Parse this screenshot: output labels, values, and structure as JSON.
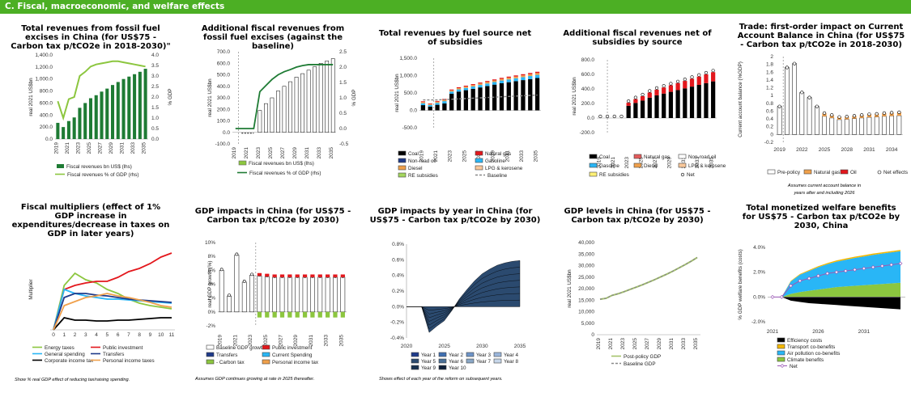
{
  "header": {
    "title": "C. Fiscal, macroeconomic, and welfare effects"
  },
  "colors": {
    "green_dark": "#1e7b34",
    "green_light": "#8cc63f",
    "orange": "#f0a04b",
    "sky": "#29b6f6",
    "red": "#e3171c",
    "black": "#000000",
    "grey_dash": "#888888",
    "navy": "#2b4a6f"
  },
  "chart_data": [
    {
      "id": "p1",
      "type": "bar",
      "title": "Total revenues from fossil fuel excises in China (for US$75 - Carbon tax p/tCO2e in 2018-2030)\"",
      "ylabel": "real 2021 US$bn",
      "y2label": "% GDP",
      "yticks": [
        "0.0",
        "200.0",
        "400.0",
        "600.0",
        "800.0",
        "1,000.0",
        "1,200.0",
        "1,400.0"
      ],
      "y2ticks": [
        "0.0",
        "0.5",
        "1.0",
        "1.5",
        "2.0",
        "2.5",
        "3.0",
        "3.5",
        "4.0"
      ],
      "xticks": [
        "2019",
        "2021",
        "2023",
        "2025",
        "2027",
        "2029",
        "2031",
        "2033",
        "2035"
      ],
      "x": [
        2019,
        2020,
        2021,
        2022,
        2023,
        2024,
        2025,
        2026,
        2027,
        2028,
        2029,
        2030,
        2031,
        2032,
        2033,
        2034,
        2035
      ],
      "ylim": [
        0,
        1400
      ],
      "y2lim": [
        0,
        4.0
      ],
      "series": [
        {
          "name": "Fiscal revenues bn US$ (lhs)",
          "values": [
            270,
            200,
            300,
            360,
            520,
            600,
            680,
            730,
            790,
            840,
            900,
            950,
            1000,
            1040,
            1080,
            1120,
            1170
          ]
        },
        {
          "name": "Fiscal revenues % of GDP (rhs)",
          "values": [
            1.8,
            1.0,
            1.9,
            2.0,
            3.0,
            3.2,
            3.45,
            3.55,
            3.6,
            3.65,
            3.7,
            3.7,
            3.65,
            3.6,
            3.55,
            3.5,
            3.45
          ]
        }
      ]
    },
    {
      "id": "p2",
      "type": "bar",
      "title": "Additional fiscal revenues from fossil fuel excises (against the baseline)",
      "ylabel": "real 2021 US$bn",
      "y2label": "% GDP",
      "yticks": [
        "-100.0",
        "0.0",
        "100.0",
        "200.0",
        "300.0",
        "400.0",
        "500.0",
        "600.0",
        "700.0"
      ],
      "y2ticks": [
        "-0.5",
        "0.0",
        "0.5",
        "1.0",
        "1.5",
        "2.0",
        "2.5"
      ],
      "xticks": [
        "2019",
        "2021",
        "2023",
        "2025",
        "2027",
        "2029",
        "2031",
        "2033",
        "2035"
      ],
      "x": [
        2019,
        2020,
        2021,
        2022,
        2023,
        2024,
        2025,
        2026,
        2027,
        2028,
        2029,
        2030,
        2031,
        2032,
        2033,
        2034,
        2035
      ],
      "ylim": [
        -100,
        700
      ],
      "y2lim": [
        -0.5,
        2.5
      ],
      "series": [
        {
          "name": "Fiscal revenues bn US$ (lhs)",
          "values": [
            0,
            0,
            0,
            0,
            190,
            250,
            300,
            360,
            400,
            440,
            480,
            510,
            540,
            570,
            600,
            620,
            640
          ]
        },
        {
          "name": "Fiscal revenues % of GDP (rhs)",
          "values": [
            0.0,
            0.0,
            0.0,
            0.0,
            1.2,
            1.4,
            1.6,
            1.75,
            1.85,
            1.92,
            2.0,
            2.05,
            2.08,
            2.08,
            2.08,
            2.08,
            2.08
          ]
        }
      ]
    },
    {
      "id": "p3",
      "type": "bar",
      "title": "Total revenues by fuel source net of subsidies",
      "ylabel": "real 2021 US$bn",
      "yticks": [
        "-500.0",
        "0.0",
        "500.0",
        "1,000.0",
        "1,500.0"
      ],
      "xticks": [
        "2019",
        "2021",
        "2023",
        "2025",
        "2027",
        "2029",
        "2031",
        "2033",
        "2035"
      ],
      "x": [
        2019,
        2020,
        2021,
        2022,
        2023,
        2024,
        2025,
        2026,
        2027,
        2028,
        2029,
        2030,
        2031,
        2032,
        2033,
        2034,
        2035
      ],
      "ylim": [
        -500,
        1500
      ],
      "legend": [
        "Coal",
        "Natural gas",
        "Non-road oil",
        "Gasoline",
        "Diesel",
        "LPG & kerosene",
        "RE subsidies",
        "Baseline"
      ],
      "coal": [
        150,
        110,
        160,
        200,
        480,
        540,
        580,
        620,
        660,
        700,
        740,
        780,
        810,
        840,
        870,
        900,
        930
      ],
      "other": [
        110,
        90,
        110,
        130,
        120,
        125,
        130,
        135,
        140,
        145,
        150,
        155,
        160,
        165,
        170,
        175,
        180
      ],
      "baseline": [
        300,
        300,
        300,
        310,
        320,
        330,
        340,
        350,
        360,
        370,
        380,
        390,
        400,
        410,
        420,
        430,
        440
      ]
    },
    {
      "id": "p4",
      "type": "bar",
      "title": "Additional fiscal revenues net of subsidies by source",
      "ylabel": "real 2021 US$bn",
      "yticks": [
        "-200.0",
        "0.0",
        "200.0",
        "400.0",
        "600.0",
        "800.0"
      ],
      "xticks": [
        "2019",
        "2021",
        "2023",
        "2025",
        "2027",
        "2029",
        "2031",
        "2033",
        "2035"
      ],
      "x": [
        2019,
        2020,
        2021,
        2022,
        2023,
        2024,
        2025,
        2026,
        2027,
        2028,
        2029,
        2030,
        2031,
        2032,
        2033,
        2034,
        2035
      ],
      "ylim": [
        -200,
        800
      ],
      "legend": [
        "Coal",
        "Natural gas",
        "Non-road oil",
        "Gasoline",
        "Diesel",
        "LPG & kerosene",
        "RE subsidies",
        "Net"
      ],
      "net": [
        0,
        0,
        0,
        0,
        210,
        260,
        300,
        350,
        390,
        420,
        450,
        480,
        510,
        540,
        570,
        600,
        630
      ]
    },
    {
      "id": "p5",
      "type": "bar",
      "title": "Trade: first-order impact on Current Account Balance in China (for US$75 - Carbon tax p/tCO2e in 2018-2030)",
      "ylabel": "Current account balance (%GDP)",
      "yticks": [
        "-0.2",
        "0",
        "0.2",
        "0.4",
        "0.6",
        "0.8",
        "1",
        "1.2",
        "1.4",
        "1.6",
        "1.8",
        "2"
      ],
      "xticks": [
        "2019",
        "2022",
        "2025",
        "2028",
        "2031",
        "2034"
      ],
      "x": [
        2019,
        2020,
        2021,
        2022,
        2023,
        2024,
        2025,
        2026,
        2027,
        2028,
        2029,
        2030,
        2031,
        2032,
        2033,
        2034,
        2035
      ],
      "ylim": [
        -0.2,
        2.0
      ],
      "legend": [
        "Pre-policy",
        "Natural gas",
        "Oil",
        "Net effects"
      ],
      "net": [
        0.72,
        1.72,
        1.82,
        1.08,
        0.95,
        0.72,
        0.55,
        0.5,
        0.45,
        0.46,
        0.48,
        0.5,
        0.52,
        0.53,
        0.55,
        0.56,
        0.57
      ],
      "note": "Assumes current account balance in years after and including 2026"
    },
    {
      "id": "p6",
      "type": "line",
      "title": "Fiscal multipliers (effect of 1% GDP increase in expenditures/decrease in taxes on GDP in later years)",
      "ylabel": "Multiplier",
      "xticks": [
        "0",
        "1",
        "2",
        "3",
        "4",
        "5",
        "6",
        "7",
        "8",
        "9",
        "10",
        "11"
      ],
      "ylim": [
        0,
        1.0
      ],
      "series": [
        {
          "name": "Energy taxes",
          "color": "#8cc63f",
          "values": [
            0,
            0.55,
            0.7,
            0.62,
            0.58,
            0.5,
            0.45,
            0.38,
            0.33,
            0.3,
            0.28,
            0.26
          ]
        },
        {
          "name": "Public investment",
          "color": "#e3171c",
          "values": [
            0,
            0.5,
            0.55,
            0.58,
            0.6,
            0.6,
            0.65,
            0.72,
            0.76,
            0.82,
            0.9,
            0.95
          ]
        },
        {
          "name": "General spending",
          "color": "#29b6f6",
          "values": [
            0,
            0.5,
            0.45,
            0.42,
            0.4,
            0.38,
            0.38,
            0.37,
            0.36,
            0.35,
            0.34,
            0.33
          ]
        },
        {
          "name": "Transfers",
          "color": "#1e3a8a",
          "values": [
            0,
            0.4,
            0.45,
            0.45,
            0.43,
            0.42,
            0.4,
            0.38,
            0.37,
            0.36,
            0.35,
            0.34
          ]
        },
        {
          "name": "Corporate income tax",
          "color": "#000000",
          "values": [
            0,
            0.15,
            0.12,
            0.12,
            0.11,
            0.11,
            0.12,
            0.12,
            0.13,
            0.14,
            0.15,
            0.15
          ]
        },
        {
          "name": "Personal income taxes",
          "color": "#f0a04b",
          "values": [
            0,
            0.3,
            0.35,
            0.4,
            0.42,
            0.45,
            0.42,
            0.4,
            0.37,
            0.34,
            0.3,
            0.28
          ]
        }
      ],
      "note": "Show % real GDP effect of reducing tax/raising spending."
    },
    {
      "id": "p7",
      "type": "bar",
      "title": "GDP impacts in China (for US$75 - Carbon tax p/tCO2e by 2030)",
      "ylabel": "real GDP growth (%)",
      "yticks": [
        "-2%",
        "0%",
        "2%",
        "4%",
        "6%",
        "8%",
        "10%"
      ],
      "xticks": [
        "2019",
        "2021",
        "2023",
        "2025",
        "2027",
        "2029",
        "2031",
        "2033",
        "2035"
      ],
      "x": [
        2019,
        2020,
        2021,
        2022,
        2023,
        2024,
        2025,
        2026,
        2027,
        2028,
        2029,
        2030,
        2031,
        2032,
        2033,
        2034,
        2035
      ],
      "ylim": [
        -2,
        10
      ],
      "legend": [
        "Baseline GDP growth",
        "Public investment",
        "Transfers",
        "Current Spending",
        "- Carbon tax",
        "Personal income tax"
      ],
      "baseline": [
        6.0,
        2.3,
        8.2,
        4.3,
        5.3,
        5.2,
        5.1,
        5.0,
        5.0,
        5.0,
        5.0,
        5.0,
        5.0,
        5.0,
        5.0,
        5.0,
        5.0
      ],
      "note": "Assumes GDP continues growing at rate in 2025 thereafter."
    },
    {
      "id": "p8",
      "type": "area",
      "title": "GDP impacts by year in China (for US$75 - Carbon tax p/tCO2e by 2030)",
      "yticks": [
        "-0.4%",
        "-0.2%",
        "0.0%",
        "0.2%",
        "0.4%",
        "0.6%",
        "0.8%"
      ],
      "xticks": [
        "2020",
        "2025",
        "2030",
        "2035"
      ],
      "ylim": [
        -0.4,
        0.8
      ],
      "legend": [
        "Year 1",
        "Year 2",
        "Year 3",
        "Year 4",
        "Year 5",
        "Year 6",
        "Year 7",
        "Year 8",
        "Year 9",
        "Year 10"
      ],
      "total_x": [
        2020,
        2022,
        2023,
        2024,
        2025,
        2026,
        2027,
        2028,
        2029,
        2030,
        2031,
        2032,
        2033,
        2034,
        2035
      ],
      "total_y": [
        0,
        0,
        -0.33,
        -0.25,
        -0.18,
        -0.05,
        0.1,
        0.22,
        0.33,
        0.42,
        0.48,
        0.53,
        0.56,
        0.58,
        0.59
      ],
      "note": "Shows effect of each year of the reform on subsequent years."
    },
    {
      "id": "p9",
      "type": "line",
      "title": "GDP levels in China (for US$75 - Carbon tax p/tCO2e by 2030)",
      "ylabel": "real 2021 US$bn",
      "yticks": [
        "0",
        "5,000",
        "10,000",
        "15,000",
        "20,000",
        "25,000",
        "30,000",
        "35,000",
        "40,000"
      ],
      "xticks": [
        "2019",
        "2021",
        "2023",
        "2025",
        "2027",
        "2029",
        "2031",
        "2033",
        "2035"
      ],
      "x": [
        2019,
        2020,
        2021,
        2022,
        2023,
        2024,
        2025,
        2026,
        2027,
        2028,
        2029,
        2030,
        2031,
        2032,
        2033,
        2034,
        2035
      ],
      "ylim": [
        0,
        40000
      ],
      "series": [
        {
          "name": "Post-policy GDP",
          "values": [
            15400,
            15800,
            17100,
            17800,
            18700,
            19700,
            20700,
            21700,
            22800,
            23900,
            25100,
            26300,
            27600,
            29000,
            30400,
            31900,
            33500
          ]
        },
        {
          "name": "Baseline GDP",
          "values": [
            15400,
            15800,
            17100,
            17800,
            18700,
            19700,
            20700,
            21700,
            22800,
            23900,
            25100,
            26300,
            27600,
            29000,
            30400,
            31900,
            33500
          ]
        }
      ]
    },
    {
      "id": "p10",
      "type": "area",
      "title": "Total monetized welfare benefits for US$75 - Carbon tax p/tCO2e by 2030, China",
      "ylabel": "% GDP welfare benefits (costs)",
      "yticks": [
        "-2.0%",
        "0.0%",
        "2.0%",
        "4.0%"
      ],
      "xticks": [
        "2021",
        "2026",
        "2031"
      ],
      "x": [
        2021,
        2022,
        2023,
        2024,
        2025,
        2026,
        2027,
        2028,
        2029,
        2030,
        2031,
        2032,
        2033,
        2034,
        2035
      ],
      "ylim": [
        -2.0,
        4.0
      ],
      "legend": [
        "Efficiency costs",
        "Transport co-benefits",
        "Air pollution co-benefits",
        "Climate benefits",
        "Net"
      ],
      "efficiency": [
        0,
        0,
        -0.3,
        -0.4,
        -0.5,
        -0.55,
        -0.6,
        -0.65,
        -0.7,
        -0.75,
        -0.8,
        -0.85,
        -0.9,
        -0.95,
        -1.0
      ],
      "climate": [
        0,
        0,
        0.25,
        0.4,
        0.5,
        0.6,
        0.7,
        0.8,
        0.85,
        0.9,
        0.95,
        1.0,
        1.05,
        1.1,
        1.15
      ],
      "air": [
        0,
        0,
        1.0,
        1.4,
        1.6,
        1.8,
        1.95,
        2.05,
        2.15,
        2.25,
        2.32,
        2.4,
        2.45,
        2.5,
        2.55
      ],
      "transport": [
        0,
        0,
        0.05,
        0.06,
        0.07,
        0.08,
        0.09,
        0.1,
        0.1,
        0.1,
        0.1,
        0.1,
        0.1,
        0.1,
        0.1
      ],
      "net": [
        0,
        0,
        0.9,
        1.3,
        1.5,
        1.7,
        1.9,
        2.0,
        2.1,
        2.2,
        2.3,
        2.4,
        2.5,
        2.6,
        2.7
      ]
    }
  ]
}
